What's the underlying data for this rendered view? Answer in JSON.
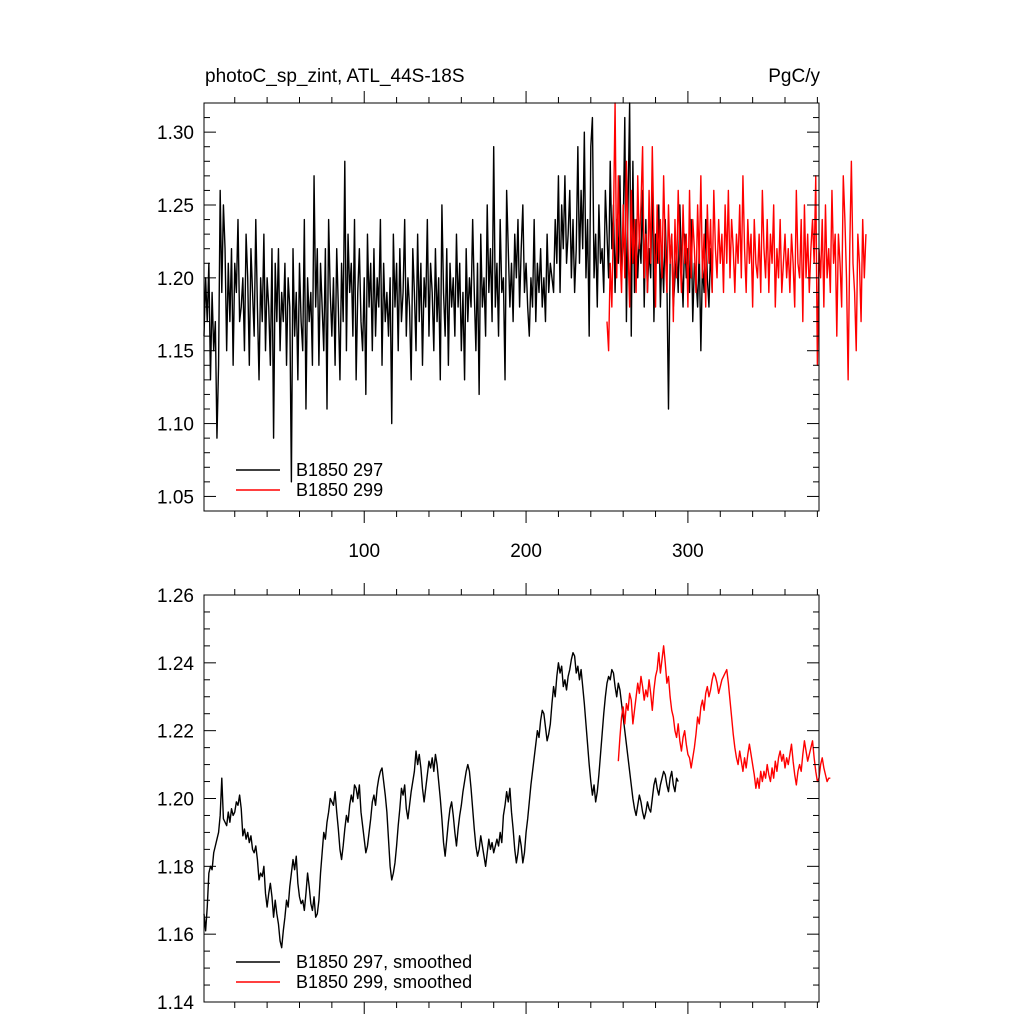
{
  "chart_data": [
    {
      "type": "line",
      "title_left": "photoC_sp_zint, ATL_44S-18S",
      "title_right": "PgC/y",
      "xlim": [
        1,
        381
      ],
      "ylim": [
        1.04,
        1.32
      ],
      "x_ticks": [
        100,
        200,
        300
      ],
      "x_tick_labels": [
        "100",
        "200",
        "300"
      ],
      "y_ticks": [
        1.05,
        1.1,
        1.15,
        1.2,
        1.25,
        1.3
      ],
      "y_tick_labels": [
        "1.05",
        "1.10",
        "1.15",
        "1.20",
        "1.25",
        "1.30"
      ],
      "legend_position": "bottom-left",
      "series": [
        {
          "name": "B1850 297",
          "color": "#000000",
          "x_start": 1,
          "values": [
            1.16,
            1.2,
            1.17,
            1.21,
            1.13,
            1.19,
            1.15,
            1.17,
            1.09,
            1.14,
            1.26,
            1.19,
            1.25,
            1.22,
            1.15,
            1.21,
            1.17,
            1.22,
            1.14,
            1.21,
            1.19,
            1.24,
            1.17,
            1.18,
            1.2,
            1.15,
            1.23,
            1.2,
            1.14,
            1.22,
            1.19,
            1.16,
            1.24,
            1.18,
            1.13,
            1.2,
            1.17,
            1.23,
            1.15,
            1.2,
            1.18,
            1.14,
            1.22,
            1.09,
            1.21,
            1.17,
            1.22,
            1.15,
            1.19,
            1.17,
            1.21,
            1.14,
            1.2,
            1.18,
            1.06,
            1.22,
            1.16,
            1.19,
            1.13,
            1.21,
            1.17,
            1.15,
            1.24,
            1.11,
            1.2,
            1.17,
            1.19,
            1.14,
            1.27,
            1.18,
            1.22,
            1.14,
            1.21,
            1.18,
            1.15,
            1.22,
            1.11,
            1.24,
            1.19,
            1.16,
            1.2,
            1.14,
            1.22,
            1.18,
            1.13,
            1.21,
            1.17,
            1.28,
            1.15,
            1.23,
            1.19,
            1.21,
            1.16,
            1.24,
            1.13,
            1.19,
            1.22,
            1.17,
            1.15,
            1.2,
            1.12,
            1.23,
            1.18,
            1.21,
            1.15,
            1.22,
            1.16,
            1.2,
            1.18,
            1.24,
            1.14,
            1.21,
            1.17,
            1.19,
            1.16,
            1.2,
            1.1,
            1.23,
            1.18,
            1.21,
            1.15,
            1.22,
            1.17,
            1.19,
            1.24,
            1.16,
            1.2,
            1.18,
            1.13,
            1.22,
            1.19,
            1.15,
            1.23,
            1.17,
            1.21,
            1.14,
            1.2,
            1.18,
            1.24,
            1.16,
            1.21,
            1.19,
            1.15,
            1.22,
            1.17,
            1.2,
            1.13,
            1.25,
            1.19,
            1.16,
            1.22,
            1.14,
            1.21,
            1.18,
            1.2,
            1.16,
            1.23,
            1.18,
            1.21,
            1.15,
            1.19,
            1.13,
            1.22,
            1.17,
            1.2,
            1.18,
            1.24,
            1.19,
            1.15,
            1.21,
            1.12,
            1.23,
            1.18,
            1.2,
            1.16,
            1.25,
            1.19,
            1.22,
            1.17,
            1.29,
            1.18,
            1.21,
            1.16,
            1.24,
            1.19,
            1.2,
            1.13,
            1.26,
            1.22,
            1.18,
            1.21,
            1.17,
            1.23,
            1.2,
            1.24,
            1.18,
            1.22,
            1.25,
            1.19,
            1.21,
            1.18,
            1.16,
            1.2,
            1.18,
            1.24,
            1.17,
            1.21,
            1.19,
            1.22,
            1.18,
            1.2,
            1.17,
            1.23,
            1.19,
            1.21,
            1.2,
            1.19,
            1.24,
            1.21,
            1.27,
            1.19,
            1.25,
            1.22,
            1.27,
            1.21,
            1.23,
            1.26,
            1.2,
            1.24,
            1.19,
            1.22,
            1.29,
            1.21,
            1.26,
            1.22,
            1.3,
            1.2,
            1.24,
            1.16,
            1.29,
            1.31,
            1.2,
            1.23,
            1.18,
            1.25,
            1.21,
            1.22,
            1.19,
            1.26,
            1.23,
            1.2,
            1.28,
            1.22,
            1.25,
            1.19,
            1.24,
            1.21,
            1.27,
            1.2,
            1.23,
            1.31,
            1.17,
            1.25,
            1.32,
            1.16,
            1.28,
            1.19,
            1.24,
            1.2,
            1.23,
            1.21,
            1.26,
            1.18,
            1.24,
            1.19,
            1.22,
            1.2,
            1.27,
            1.17,
            1.23,
            1.21,
            1.25,
            1.18,
            1.22,
            1.19,
            1.24,
            1.2,
            1.11,
            1.21,
            1.23,
            1.18,
            1.2,
            1.22,
            1.19,
            1.25,
            1.21,
            1.18,
            1.23,
            1.2,
            1.22,
            1.19,
            1.24,
            1.17,
            1.21,
            1.2,
            1.18,
            1.22,
            1.15,
            1.21,
            1.19,
            1.24,
            1.2,
            1.18,
            1.22,
            1.19
          ]
        },
        {
          "name": "B1850 299",
          "color": "#ff0000",
          "x_start": 250,
          "values": [
            1.17,
            1.15,
            1.21,
            1.18,
            1.24,
            1.32,
            1.2,
            1.27,
            1.22,
            1.19,
            1.25,
            1.2,
            1.28,
            1.22,
            1.18,
            1.26,
            1.21,
            1.24,
            1.19,
            1.27,
            1.22,
            1.25,
            1.29,
            1.2,
            1.23,
            1.19,
            1.26,
            1.21,
            1.29,
            1.23,
            1.18,
            1.25,
            1.21,
            1.24,
            1.2,
            1.27,
            1.22,
            1.19,
            1.25,
            1.21,
            1.23,
            1.17,
            1.24,
            1.2,
            1.26,
            1.22,
            1.19,
            1.25,
            1.21,
            1.23,
            1.18,
            1.26,
            1.2,
            1.24,
            1.22,
            1.19,
            1.25,
            1.21,
            1.27,
            1.2,
            1.23,
            1.18,
            1.25,
            1.21,
            1.24,
            1.19,
            1.26,
            1.22,
            1.2,
            1.24,
            1.21,
            1.23,
            1.19,
            1.25,
            1.21,
            1.26,
            1.2,
            1.24,
            1.22,
            1.19,
            1.23,
            1.21,
            1.25,
            1.2,
            1.27,
            1.22,
            1.19,
            1.24,
            1.21,
            1.23,
            1.18,
            1.24,
            1.21,
            1.2,
            1.23,
            1.19,
            1.26,
            1.22,
            1.2,
            1.24,
            1.19,
            1.23,
            1.21,
            1.25,
            1.18,
            1.22,
            1.2,
            1.24,
            1.19,
            1.21,
            1.23,
            1.2,
            1.22,
            1.19,
            1.23,
            1.21,
            1.18,
            1.26,
            1.21,
            1.2,
            1.24,
            1.17,
            1.25,
            1.2,
            1.23,
            1.19,
            1.22,
            1.24,
            1.21,
            1.27,
            1.14,
            1.22,
            1.2,
            1.24,
            1.18,
            1.25,
            1.2,
            1.22,
            1.19,
            1.26,
            1.21,
            1.23,
            1.16,
            1.23,
            1.21,
            1.18,
            1.27,
            1.24,
            1.2,
            1.13,
            1.22,
            1.28,
            1.21,
            1.19,
            1.15,
            1.23,
            1.21,
            1.17,
            1.24,
            1.2,
            1.23
          ]
        }
      ]
    },
    {
      "type": "line",
      "xlim": [
        1,
        381
      ],
      "ylim": [
        1.14,
        1.26
      ],
      "x_ticks": [
        100,
        200,
        300
      ],
      "y_ticks": [
        1.14,
        1.16,
        1.18,
        1.2,
        1.22,
        1.24,
        1.26
      ],
      "y_tick_labels": [
        "1.14",
        "1.16",
        "1.18",
        "1.20",
        "1.22",
        "1.24",
        "1.26"
      ],
      "legend_position": "bottom-left",
      "series": [
        {
          "name": "B1850 297, smoothed",
          "color": "#000000",
          "x_start": 1,
          "values": [
            1.166,
            1.161,
            1.168,
            1.178,
            1.18,
            1.179,
            1.184,
            1.186,
            1.188,
            1.19,
            1.195,
            1.206,
            1.194,
            1.193,
            1.192,
            1.196,
            1.193,
            1.197,
            1.195,
            1.196,
            1.199,
            1.198,
            1.201,
            1.197,
            1.189,
            1.191,
            1.188,
            1.19,
            1.187,
            1.189,
            1.185,
            1.184,
            1.186,
            1.182,
            1.176,
            1.178,
            1.177,
            1.18,
            1.172,
            1.168,
            1.172,
            1.175,
            1.171,
            1.165,
            1.17,
            1.166,
            1.163,
            1.158,
            1.156,
            1.161,
            1.165,
            1.17,
            1.168,
            1.174,
            1.178,
            1.182,
            1.179,
            1.183,
            1.175,
            1.171,
            1.169,
            1.17,
            1.167,
            1.172,
            1.178,
            1.174,
            1.169,
            1.167,
            1.171,
            1.165,
            1.166,
            1.17,
            1.178,
            1.184,
            1.19,
            1.188,
            1.193,
            1.196,
            1.2,
            1.199,
            1.198,
            1.202,
            1.196,
            1.191,
            1.185,
            1.182,
            1.186,
            1.191,
            1.195,
            1.193,
            1.198,
            1.201,
            1.199,
            1.204,
            1.203,
            1.2,
            1.204,
            1.196,
            1.192,
            1.188,
            1.184,
            1.186,
            1.19,
            1.194,
            1.199,
            1.201,
            1.198,
            1.203,
            1.206,
            1.208,
            1.209,
            1.205,
            1.201,
            1.196,
            1.188,
            1.18,
            1.176,
            1.178,
            1.181,
            1.186,
            1.192,
            1.197,
            1.203,
            1.201,
            1.204,
            1.197,
            1.194,
            1.198,
            1.202,
            1.205,
            1.208,
            1.214,
            1.21,
            1.213,
            1.209,
            1.203,
            1.199,
            1.203,
            1.207,
            1.211,
            1.209,
            1.212,
            1.208,
            1.213,
            1.21,
            1.205,
            1.2,
            1.194,
            1.187,
            1.183,
            1.188,
            1.193,
            1.197,
            1.199,
            1.195,
            1.19,
            1.186,
            1.191,
            1.195,
            1.198,
            1.202,
            1.205,
            1.208,
            1.21,
            1.208,
            1.203,
            1.197,
            1.191,
            1.186,
            1.183,
            1.185,
            1.189,
            1.186,
            1.183,
            1.18,
            1.184,
            1.188,
            1.185,
            1.187,
            1.184,
            1.186,
            1.188,
            1.186,
            1.19,
            1.187,
            1.195,
            1.198,
            1.202,
            1.199,
            1.203,
            1.196,
            1.191,
            1.185,
            1.181,
            1.184,
            1.189,
            1.186,
            1.181,
            1.184,
            1.19,
            1.194,
            1.199,
            1.204,
            1.208,
            1.212,
            1.216,
            1.22,
            1.218,
            1.223,
            1.226,
            1.225,
            1.221,
            1.217,
            1.219,
            1.222,
            1.228,
            1.233,
            1.23,
            1.236,
            1.24,
            1.237,
            1.239,
            1.233,
            1.235,
            1.232,
            1.236,
            1.238,
            1.241,
            1.243,
            1.242,
            1.237,
            1.239,
            1.235,
            1.238,
            1.233,
            1.228,
            1.222,
            1.216,
            1.21,
            1.205,
            1.201,
            1.204,
            1.199,
            1.202,
            1.207,
            1.213,
            1.219,
            1.225,
            1.23,
            1.234,
            1.236,
            1.235,
            1.238,
            1.237,
            1.233,
            1.23,
            1.234,
            1.232,
            1.228,
            1.224,
            1.22,
            1.216,
            1.212,
            1.208,
            1.204,
            1.2,
            1.197,
            1.195,
            1.198,
            1.201,
            1.199,
            1.196,
            1.194,
            1.196,
            1.199,
            1.197,
            1.196,
            1.2,
            1.204,
            1.206,
            1.203,
            1.201,
            1.204,
            1.206,
            1.208,
            1.207,
            1.204,
            1.202,
            1.206,
            1.208,
            1.204,
            1.202,
            1.206,
            1.205
          ]
        },
        {
          "name": "B1850 299, smoothed",
          "color": "#ff0000",
          "x_start": 257,
          "values": [
            1.211,
            1.218,
            1.224,
            1.227,
            1.222,
            1.228,
            1.226,
            1.231,
            1.229,
            1.222,
            1.226,
            1.23,
            1.234,
            1.231,
            1.236,
            1.233,
            1.229,
            1.232,
            1.23,
            1.235,
            1.231,
            1.226,
            1.232,
            1.236,
            1.238,
            1.243,
            1.237,
            1.241,
            1.245,
            1.24,
            1.234,
            1.236,
            1.23,
            1.226,
            1.224,
            1.22,
            1.218,
            1.222,
            1.217,
            1.214,
            1.218,
            1.22,
            1.216,
            1.213,
            1.212,
            1.209,
            1.212,
            1.215,
            1.219,
            1.224,
            1.222,
            1.227,
            1.229,
            1.226,
            1.231,
            1.233,
            1.23,
            1.232,
            1.235,
            1.237,
            1.236,
            1.234,
            1.231,
            1.233,
            1.235,
            1.236,
            1.237,
            1.238,
            1.234,
            1.229,
            1.224,
            1.219,
            1.215,
            1.212,
            1.21,
            1.214,
            1.211,
            1.208,
            1.212,
            1.209,
            1.213,
            1.216,
            1.213,
            1.21,
            1.207,
            1.203,
            1.206,
            1.203,
            1.208,
            1.205,
            1.208,
            1.206,
            1.21,
            1.207,
            1.205,
            1.209,
            1.206,
            1.211,
            1.208,
            1.212,
            1.214,
            1.211,
            1.213,
            1.209,
            1.212,
            1.21,
            1.213,
            1.216,
            1.211,
            1.207,
            1.204,
            1.208,
            1.21,
            1.208,
            1.213,
            1.217,
            1.214,
            1.211,
            1.213,
            1.215,
            1.217,
            1.212,
            1.208,
            1.205,
            1.206,
            1.21,
            1.212,
            1.209,
            1.207,
            1.205,
            1.206,
            1.206
          ]
        }
      ]
    }
  ]
}
